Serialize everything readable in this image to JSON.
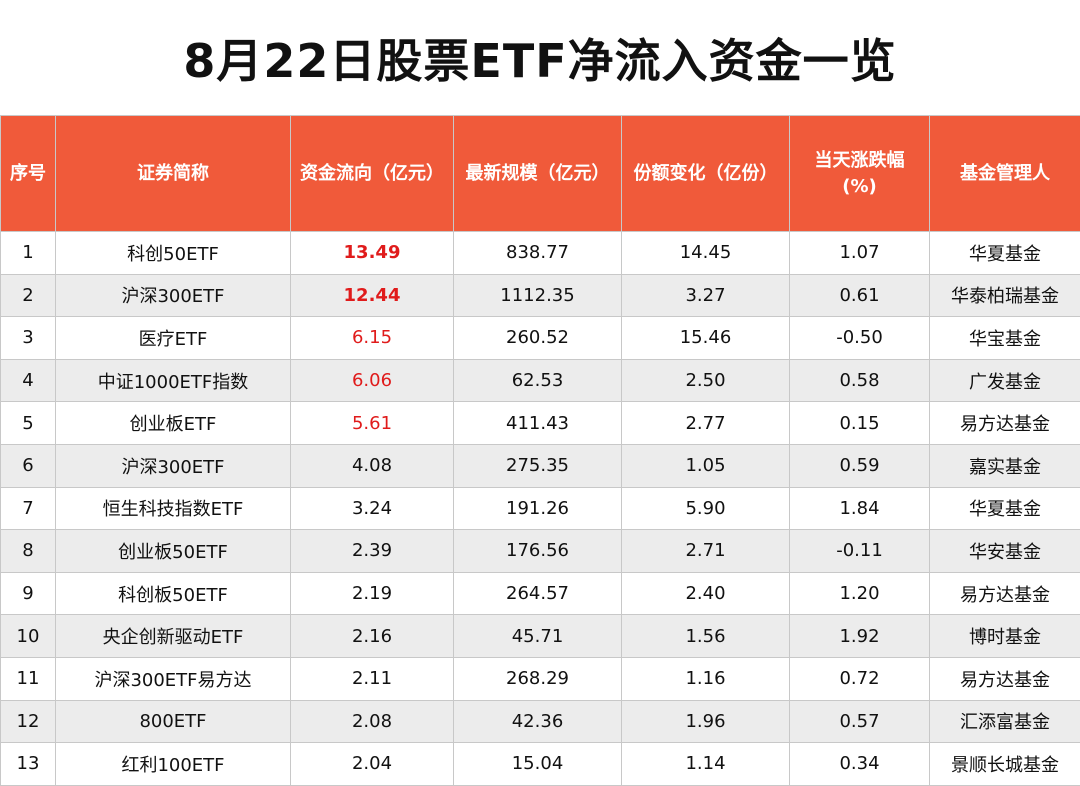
{
  "title": "8月22日股票ETF净流入资金一览",
  "colors": {
    "header_bg": "#f05a3a",
    "highlight_red": "#e01b1b",
    "stripe": "#ececec"
  },
  "headers": [
    "序号",
    "证券简称",
    "资金流向（亿元）",
    "最新规模（亿元）",
    "份额变化（亿份）",
    "当天涨跌幅\n(%)",
    "基金管理人"
  ],
  "rows": [
    {
      "no": "1",
      "name": "科创50ETF",
      "flow": "13.49",
      "scale": "838.77",
      "share": "14.45",
      "pct": "1.07",
      "manager": "华夏基金",
      "flow_style": "red-bold"
    },
    {
      "no": "2",
      "name": "沪深300ETF",
      "flow": "12.44",
      "scale": "1112.35",
      "share": "3.27",
      "pct": "0.61",
      "manager": "华泰柏瑞基金",
      "flow_style": "red-bold"
    },
    {
      "no": "3",
      "name": "医疗ETF",
      "flow": "6.15",
      "scale": "260.52",
      "share": "15.46",
      "pct": "-0.50",
      "manager": "华宝基金",
      "flow_style": "red"
    },
    {
      "no": "4",
      "name": "中证1000ETF指数",
      "flow": "6.06",
      "scale": "62.53",
      "share": "2.50",
      "pct": "0.58",
      "manager": "广发基金",
      "flow_style": "red"
    },
    {
      "no": "5",
      "name": "创业板ETF",
      "flow": "5.61",
      "scale": "411.43",
      "share": "2.77",
      "pct": "0.15",
      "manager": "易方达基金",
      "flow_style": "red"
    },
    {
      "no": "6",
      "name": "沪深300ETF",
      "flow": "4.08",
      "scale": "275.35",
      "share": "1.05",
      "pct": "0.59",
      "manager": "嘉实基金",
      "flow_style": "normal"
    },
    {
      "no": "7",
      "name": "恒生科技指数ETF",
      "flow": "3.24",
      "scale": "191.26",
      "share": "5.90",
      "pct": "1.84",
      "manager": "华夏基金",
      "flow_style": "normal"
    },
    {
      "no": "8",
      "name": "创业板50ETF",
      "flow": "2.39",
      "scale": "176.56",
      "share": "2.71",
      "pct": "-0.11",
      "manager": "华安基金",
      "flow_style": "normal"
    },
    {
      "no": "9",
      "name": "科创板50ETF",
      "flow": "2.19",
      "scale": "264.57",
      "share": "2.40",
      "pct": "1.20",
      "manager": "易方达基金",
      "flow_style": "normal"
    },
    {
      "no": "10",
      "name": "央企创新驱动ETF",
      "flow": "2.16",
      "scale": "45.71",
      "share": "1.56",
      "pct": "1.92",
      "manager": "博时基金",
      "flow_style": "normal"
    },
    {
      "no": "11",
      "name": "沪深300ETF易方达",
      "flow": "2.11",
      "scale": "268.29",
      "share": "1.16",
      "pct": "0.72",
      "manager": "易方达基金",
      "flow_style": "normal"
    },
    {
      "no": "12",
      "name": "800ETF",
      "flow": "2.08",
      "scale": "42.36",
      "share": "1.96",
      "pct": "0.57",
      "manager": "汇添富基金",
      "flow_style": "normal"
    },
    {
      "no": "13",
      "name": "红利100ETF",
      "flow": "2.04",
      "scale": "15.04",
      "share": "1.14",
      "pct": "0.34",
      "manager": "景顺长城基金",
      "flow_style": "normal"
    }
  ]
}
